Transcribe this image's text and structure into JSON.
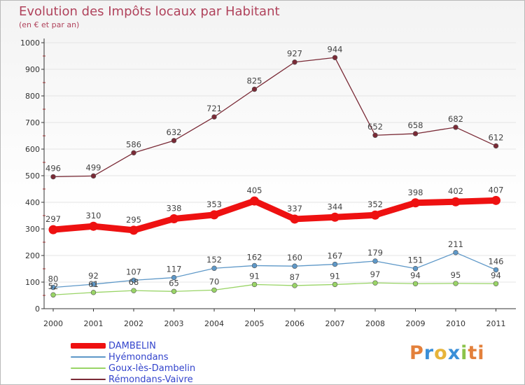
{
  "header": {
    "title": "Evolution des Impôts locaux par Habitant",
    "subtitle": "(en € et par an)"
  },
  "logo": {
    "letters": [
      "P",
      "r",
      "o",
      "x",
      "i",
      "ti"
    ]
  },
  "chart_data": {
    "type": "line",
    "x": [
      "2000",
      "2001",
      "2002",
      "2003",
      "2004",
      "2005",
      "2006",
      "2007",
      "2008",
      "2009",
      "2010",
      "2011"
    ],
    "ylim": [
      0,
      1000
    ],
    "yticks": [
      0,
      100,
      200,
      300,
      400,
      500,
      600,
      700,
      800,
      900,
      1000
    ],
    "grid": true,
    "legend_position": "bottom-left",
    "series": [
      {
        "name": "DAMBELIN",
        "color": "#ee1111",
        "emphasis": true,
        "values": [
          297,
          310,
          295,
          338,
          353,
          405,
          337,
          344,
          352,
          398,
          402,
          407
        ]
      },
      {
        "name": "Hyémondans",
        "color": "#5e98c8",
        "values": [
          80,
          92,
          107,
          117,
          152,
          162,
          160,
          167,
          179,
          151,
          211,
          146
        ]
      },
      {
        "name": "Goux-lès-Dambelin",
        "color": "#99d466",
        "values": [
          52,
          61,
          68,
          65,
          70,
          91,
          87,
          91,
          97,
          94,
          95,
          94
        ]
      },
      {
        "name": "Rémondans-Vaivre",
        "color": "#7a2a36",
        "values": [
          496,
          499,
          586,
          632,
          721,
          825,
          927,
          944,
          652,
          658,
          682,
          612
        ]
      }
    ]
  }
}
